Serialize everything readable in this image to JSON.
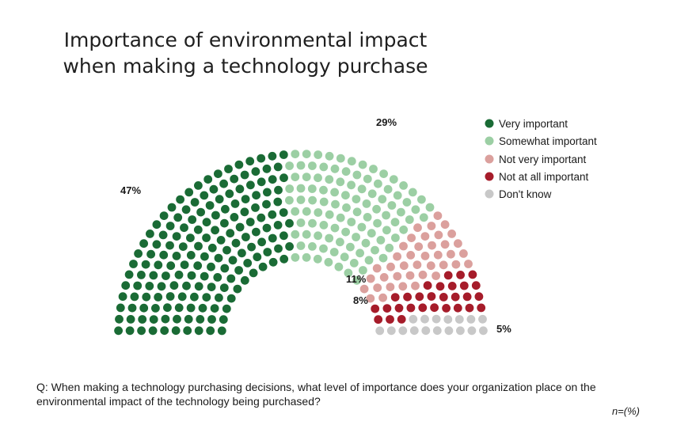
{
  "title_line1": "Importance of environmental impact",
  "title_line2": "when making a technology purchase",
  "chart_data": {
    "type": "pie",
    "variant": "half-donut dot (parliament) chart",
    "categories": [
      "Very important",
      "Somewhat important",
      "Not very important",
      "Not at all important",
      "Don't know"
    ],
    "values": [
      47,
      29,
      11,
      8,
      5
    ],
    "labels": [
      "47%",
      "29%",
      "11%",
      "8%",
      "5%"
    ],
    "colors": [
      "#1a6b35",
      "#9ccfa4",
      "#dba09d",
      "#a61c2a",
      "#c8c8c8"
    ],
    "legend_position": "right"
  },
  "legend": [
    {
      "label": "Very important",
      "color": "#1a6b35"
    },
    {
      "label": "Somewhat important",
      "color": "#9ccfa4"
    },
    {
      "label": "Not very important",
      "color": "#dba09d"
    },
    {
      "label": "Not at all important",
      "color": "#a61c2a"
    },
    {
      "label": "Don't know",
      "color": "#c8c8c8"
    }
  ],
  "question": "Q: When making a technology purchasing decisions, what level of importance does your organization place on the environmental impact of the technology being purchased?",
  "base_note": "n=(%)"
}
